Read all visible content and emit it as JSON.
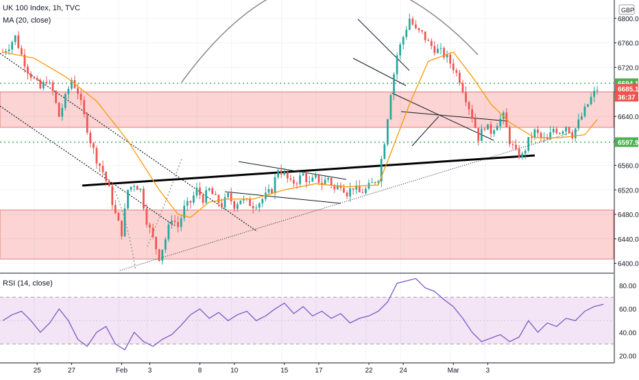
{
  "chart_data": [
    {
      "type": "candlestick",
      "title": "UK 100 Index, 1h, TVC",
      "indicator_label": "MA (20, close)",
      "currency": "GBP",
      "ylim": [
        6385,
        6830
      ],
      "y_ticks": [
        "6800.0",
        "6760.0",
        "6720.0",
        "6680.0",
        "6640.0",
        "6600.0",
        "6560.0",
        "6520.0",
        "6480.0",
        "6440.0",
        "6400.0"
      ],
      "x_ticks": [
        "25",
        "27",
        "Feb",
        "3",
        "8",
        "10",
        "15",
        "17",
        "22",
        "24",
        "Mar",
        "3"
      ],
      "price_labels": [
        {
          "text": "6694.1",
          "value": 6694.1,
          "color": "#4caf50"
        },
        {
          "text": "6685.1",
          "value": 6685.1,
          "color": "#ef5350"
        },
        {
          "text": "36:37",
          "value": 6672,
          "color": "#ef5350"
        },
        {
          "text": "6597.9",
          "value": 6597.9,
          "color": "#4caf50"
        }
      ],
      "resistance_levels": [
        6694.1,
        6597.9
      ],
      "zones": [
        {
          "from": 6622,
          "to": 6680
        },
        {
          "from": 6407,
          "to": 6487
        }
      ],
      "close_path": [
        [
          0,
          6745
        ],
        [
          2,
          6755
        ],
        [
          4,
          6770
        ],
        [
          6,
          6740
        ],
        [
          8,
          6715
        ],
        [
          10,
          6700
        ],
        [
          12,
          6685
        ],
        [
          14,
          6700
        ],
        [
          16,
          6680
        ],
        [
          18,
          6640
        ],
        [
          20,
          6670
        ],
        [
          22,
          6700
        ],
        [
          24,
          6680
        ],
        [
          26,
          6640
        ],
        [
          28,
          6600
        ],
        [
          30,
          6570
        ],
        [
          32,
          6550
        ],
        [
          34,
          6520
        ],
        [
          36,
          6480
        ],
        [
          38,
          6450
        ],
        [
          40,
          6520
        ],
        [
          42,
          6530
        ],
        [
          44,
          6520
        ],
        [
          46,
          6470
        ],
        [
          48,
          6440
        ],
        [
          50,
          6410
        ],
        [
          52,
          6440
        ],
        [
          54,
          6475
        ],
        [
          56,
          6460
        ],
        [
          58,
          6490
        ],
        [
          60,
          6500
        ],
        [
          62,
          6520
        ],
        [
          64,
          6505
        ],
        [
          66,
          6520
        ],
        [
          68,
          6505
        ],
        [
          70,
          6495
        ],
        [
          72,
          6510
        ],
        [
          74,
          6495
        ],
        [
          76,
          6505
        ],
        [
          78,
          6500
        ],
        [
          80,
          6495
        ],
        [
          82,
          6500
        ],
        [
          84,
          6510
        ],
        [
          86,
          6520
        ],
        [
          88,
          6555
        ],
        [
          90,
          6545
        ],
        [
          92,
          6530
        ],
        [
          94,
          6535
        ],
        [
          96,
          6545
        ],
        [
          98,
          6530
        ],
        [
          100,
          6540
        ],
        [
          102,
          6530
        ],
        [
          104,
          6540
        ],
        [
          106,
          6520
        ],
        [
          108,
          6530
        ],
        [
          110,
          6515
        ],
        [
          112,
          6525
        ],
        [
          114,
          6515
        ],
        [
          116,
          6520
        ],
        [
          118,
          6530
        ],
        [
          120,
          6540
        ],
        [
          122,
          6600
        ],
        [
          124,
          6680
        ],
        [
          126,
          6740
        ],
        [
          128,
          6770
        ],
        [
          130,
          6800
        ],
        [
          132,
          6780
        ],
        [
          134,
          6775
        ],
        [
          136,
          6760
        ],
        [
          138,
          6750
        ],
        [
          140,
          6745
        ],
        [
          142,
          6735
        ],
        [
          144,
          6720
        ],
        [
          146,
          6700
        ],
        [
          148,
          6670
        ],
        [
          150,
          6640
        ],
        [
          152,
          6605
        ],
        [
          154,
          6625
        ],
        [
          156,
          6615
        ],
        [
          158,
          6630
        ],
        [
          160,
          6640
        ],
        [
          162,
          6600
        ],
        [
          164,
          6580
        ],
        [
          166,
          6575
        ],
        [
          168,
          6600
        ],
        [
          170,
          6615
        ],
        [
          172,
          6605
        ],
        [
          174,
          6600
        ],
        [
          176,
          6620
        ],
        [
          178,
          6615
        ],
        [
          180,
          6625
        ],
        [
          182,
          6610
        ],
        [
          184,
          6630
        ],
        [
          186,
          6650
        ],
        [
          188,
          6670
        ],
        [
          190,
          6685
        ]
      ],
      "ma_path": [
        [
          0,
          6745
        ],
        [
          10,
          6735
        ],
        [
          20,
          6705
        ],
        [
          30,
          6665
        ],
        [
          40,
          6600
        ],
        [
          50,
          6520
        ],
        [
          56,
          6480
        ],
        [
          60,
          6475
        ],
        [
          66,
          6500
        ],
        [
          72,
          6505
        ],
        [
          80,
          6505
        ],
        [
          90,
          6520
        ],
        [
          100,
          6530
        ],
        [
          110,
          6525
        ],
        [
          120,
          6528
        ],
        [
          124,
          6580
        ],
        [
          130,
          6660
        ],
        [
          136,
          6730
        ],
        [
          144,
          6745
        ],
        [
          150,
          6705
        ],
        [
          156,
          6660
        ],
        [
          162,
          6630
        ],
        [
          170,
          6605
        ],
        [
          178,
          6605
        ],
        [
          186,
          6610
        ],
        [
          190,
          6635
        ]
      ]
    },
    {
      "type": "line",
      "title": "RSI (14, close)",
      "ylim": [
        15,
        90
      ],
      "y_ticks": [
        "80.00",
        "60.00",
        "40.00",
        "20.00"
      ],
      "bands": [
        30,
        70
      ],
      "rsi_path": [
        [
          0,
          50
        ],
        [
          3,
          55
        ],
        [
          6,
          58
        ],
        [
          9,
          50
        ],
        [
          12,
          40
        ],
        [
          15,
          48
        ],
        [
          18,
          60
        ],
        [
          21,
          50
        ],
        [
          24,
          34
        ],
        [
          27,
          28
        ],
        [
          30,
          40
        ],
        [
          33,
          45
        ],
        [
          36,
          30
        ],
        [
          39,
          25
        ],
        [
          42,
          40
        ],
        [
          45,
          32
        ],
        [
          48,
          28
        ],
        [
          51,
          34
        ],
        [
          54,
          38
        ],
        [
          57,
          46
        ],
        [
          60,
          55
        ],
        [
          63,
          60
        ],
        [
          66,
          52
        ],
        [
          69,
          57
        ],
        [
          72,
          50
        ],
        [
          75,
          55
        ],
        [
          78,
          58
        ],
        [
          81,
          50
        ],
        [
          84,
          54
        ],
        [
          87,
          60
        ],
        [
          90,
          65
        ],
        [
          93,
          56
        ],
        [
          96,
          62
        ],
        [
          99,
          54
        ],
        [
          102,
          58
        ],
        [
          105,
          52
        ],
        [
          108,
          56
        ],
        [
          111,
          48
        ],
        [
          114,
          52
        ],
        [
          117,
          54
        ],
        [
          120,
          58
        ],
        [
          123,
          66
        ],
        [
          126,
          82
        ],
        [
          129,
          84
        ],
        [
          132,
          86
        ],
        [
          135,
          78
        ],
        [
          138,
          75
        ],
        [
          141,
          68
        ],
        [
          144,
          62
        ],
        [
          147,
          52
        ],
        [
          150,
          40
        ],
        [
          153,
          32
        ],
        [
          156,
          35
        ],
        [
          159,
          38
        ],
        [
          162,
          32
        ],
        [
          165,
          36
        ],
        [
          168,
          50
        ],
        [
          171,
          40
        ],
        [
          174,
          48
        ],
        [
          177,
          45
        ],
        [
          180,
          52
        ],
        [
          183,
          50
        ],
        [
          186,
          58
        ],
        [
          189,
          62
        ],
        [
          192,
          64
        ]
      ]
    }
  ]
}
